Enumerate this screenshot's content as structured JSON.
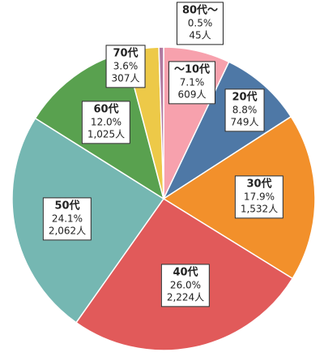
{
  "chart_data": {
    "type": "pie",
    "title": "",
    "start": "top",
    "direction": "clockwise",
    "slices": [
      {
        "label": "〜10代",
        "percent": "7.1%",
        "count": "609人",
        "value": 7.1,
        "color": "#f7a1ad"
      },
      {
        "label": "20代",
        "percent": "8.8%",
        "count": "749人",
        "value": 8.8,
        "color": "#4e78a6"
      },
      {
        "label": "30代",
        "percent": "17.9%",
        "count": "1,532人",
        "value": 17.9,
        "color": "#f2902b"
      },
      {
        "label": "40代",
        "percent": "26.0%",
        "count": "2,224人",
        "value": 26.0,
        "color": "#e15a5a"
      },
      {
        "label": "50代",
        "percent": "24.1%",
        "count": "2,062人",
        "value": 24.1,
        "color": "#75b7b2"
      },
      {
        "label": "60代",
        "percent": "12.0%",
        "count": "1,025人",
        "value": 12.0,
        "color": "#59a14f"
      },
      {
        "label": "70代",
        "percent": "3.6%",
        "count": "307人",
        "value": 3.6,
        "color": "#edc948"
      },
      {
        "label": "80代〜",
        "percent": "0.5%",
        "count": "45人",
        "value": 0.5,
        "color": "#b07aa1"
      }
    ]
  }
}
